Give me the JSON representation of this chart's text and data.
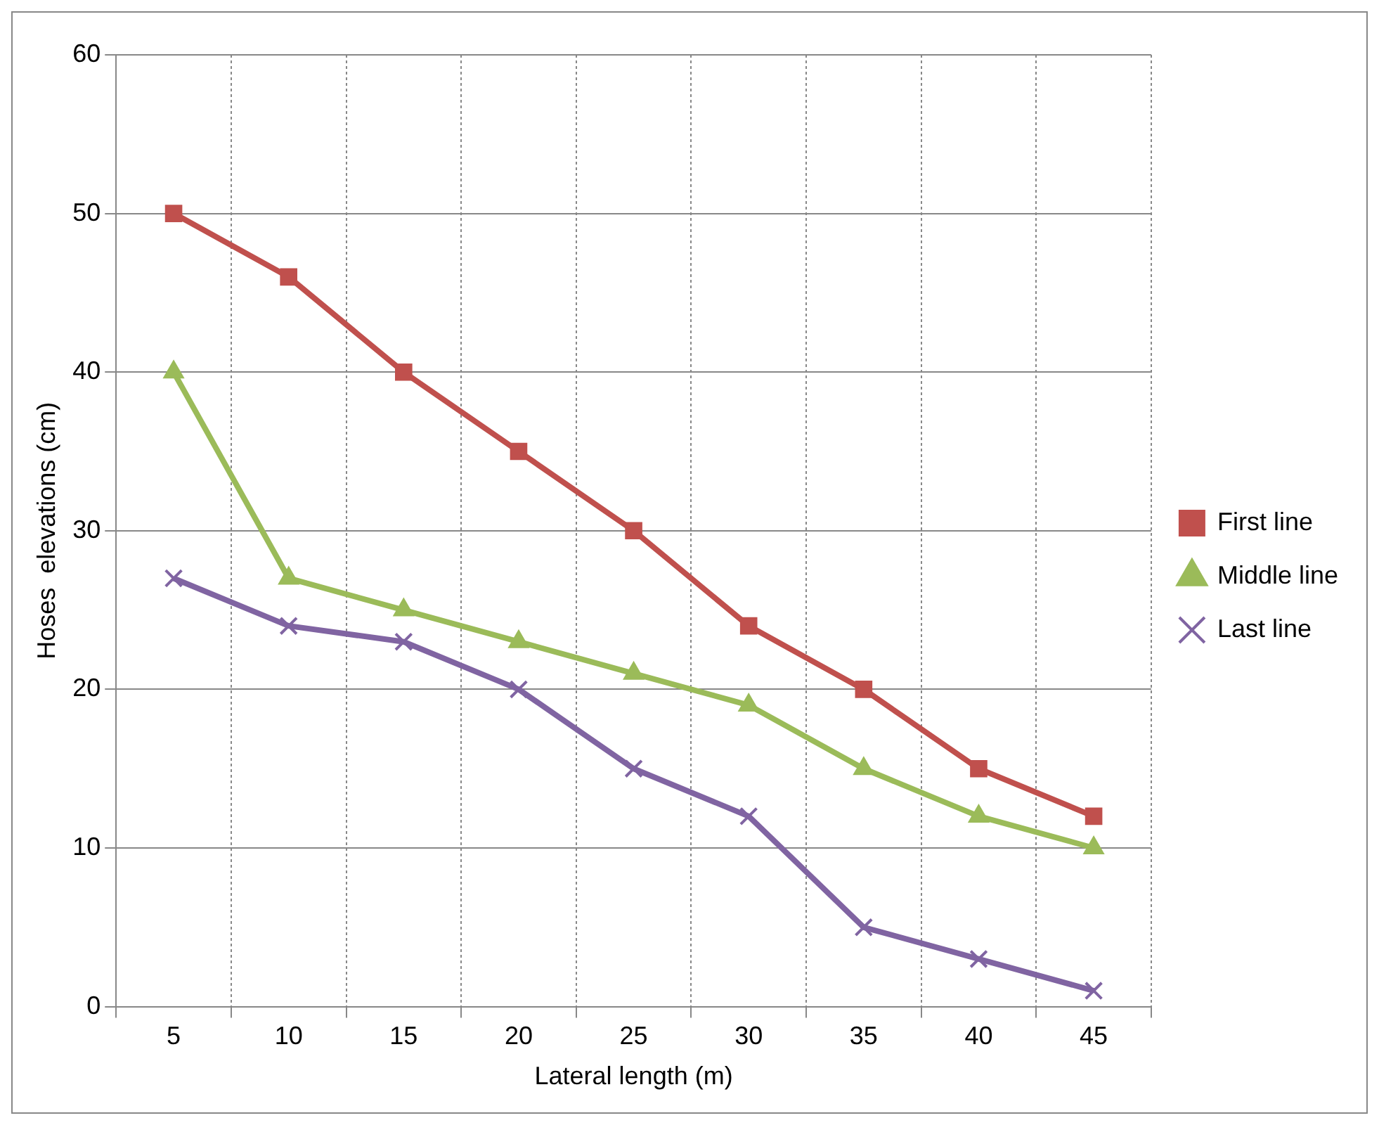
{
  "chart_data": {
    "type": "line",
    "xlabel": "Lateral length (m)",
    "ylabel": "Hoses  elevations (cm)",
    "categories": [
      "5",
      "10",
      "15",
      "20",
      "25",
      "30",
      "35",
      "40",
      "45"
    ],
    "series": [
      {
        "name": "First line",
        "color": "#c0504d",
        "marker": "square",
        "values": [
          50,
          46,
          40,
          35,
          30,
          24,
          20,
          15,
          12
        ]
      },
      {
        "name": "Middle line",
        "color": "#9bbb59",
        "marker": "triangle",
        "values": [
          40,
          27,
          25,
          23,
          21,
          19,
          15,
          12,
          10
        ]
      },
      {
        "name": "Last line",
        "color": "#8064a2",
        "marker": "cross",
        "values": [
          27,
          24,
          23,
          20,
          15,
          12,
          5,
          3,
          1
        ]
      }
    ],
    "ylim": [
      0,
      60
    ],
    "yticks": [
      0,
      10,
      20,
      30,
      40,
      50,
      60
    ],
    "grid": true,
    "legend": "right",
    "line_style": "solid"
  }
}
